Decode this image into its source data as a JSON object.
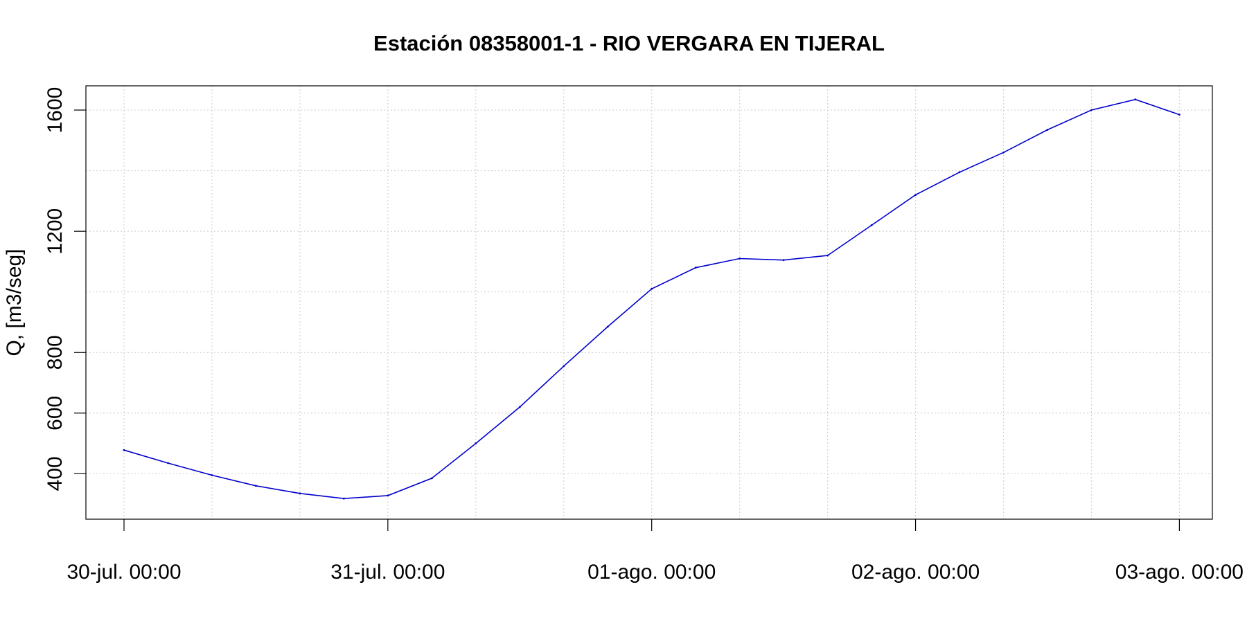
{
  "chart_data": {
    "type": "line",
    "title": "Estación 08358001-1 - RIO VERGARA EN TIJERAL",
    "xlabel": "",
    "ylabel": "Q, [m3/seg]",
    "x_ticks": [
      "30-jul. 00:00",
      "31-jul. 00:00",
      "01-ago. 00:00",
      "02-ago. 00:00",
      "03-ago. 00:00"
    ],
    "x_tick_dates": [
      "30-jul. 00:00",
      "31-jul. 00:00",
      "01-ago. 00:00",
      "02-ago. 00:00",
      "03-ago. 00:00"
    ],
    "x_range": [
      "29-jul. 20:32",
      "03-ago. 03:00"
    ],
    "y_ticks": [
      400,
      600,
      800,
      1200,
      1600
    ],
    "ylim": [
      250,
      1680
    ],
    "grid": true,
    "grid_x_hours": [
      0,
      8,
      16
    ],
    "line_color": "#0000cd",
    "series": [
      {
        "x": [
          "30-jul. 00:00",
          "30-jul. 04:00",
          "30-jul. 08:00",
          "30-jul. 12:00",
          "30-jul. 16:00",
          "30-jul. 20:00",
          "31-jul. 00:00",
          "31-jul. 04:00",
          "31-jul. 08:00",
          "31-jul. 12:00",
          "31-jul. 16:00",
          "31-jul. 20:00",
          "01-ago. 00:00",
          "01-ago. 04:00",
          "01-ago. 08:00",
          "01-ago. 12:00",
          "01-ago. 16:00",
          "01-ago. 20:00",
          "02-ago. 00:00",
          "02-ago. 04:00",
          "02-ago. 08:00",
          "02-ago. 12:00",
          "02-ago. 16:00",
          "02-ago. 20:00",
          "03-ago. 00:00"
        ],
        "y": [
          478,
          435,
          395,
          360,
          335,
          318,
          328,
          385,
          500,
          620,
          755,
          885,
          1010,
          1080,
          1110,
          1105,
          1120,
          1220,
          1320,
          1395,
          1460,
          1535,
          1600,
          1635,
          1585
        ]
      }
    ]
  }
}
